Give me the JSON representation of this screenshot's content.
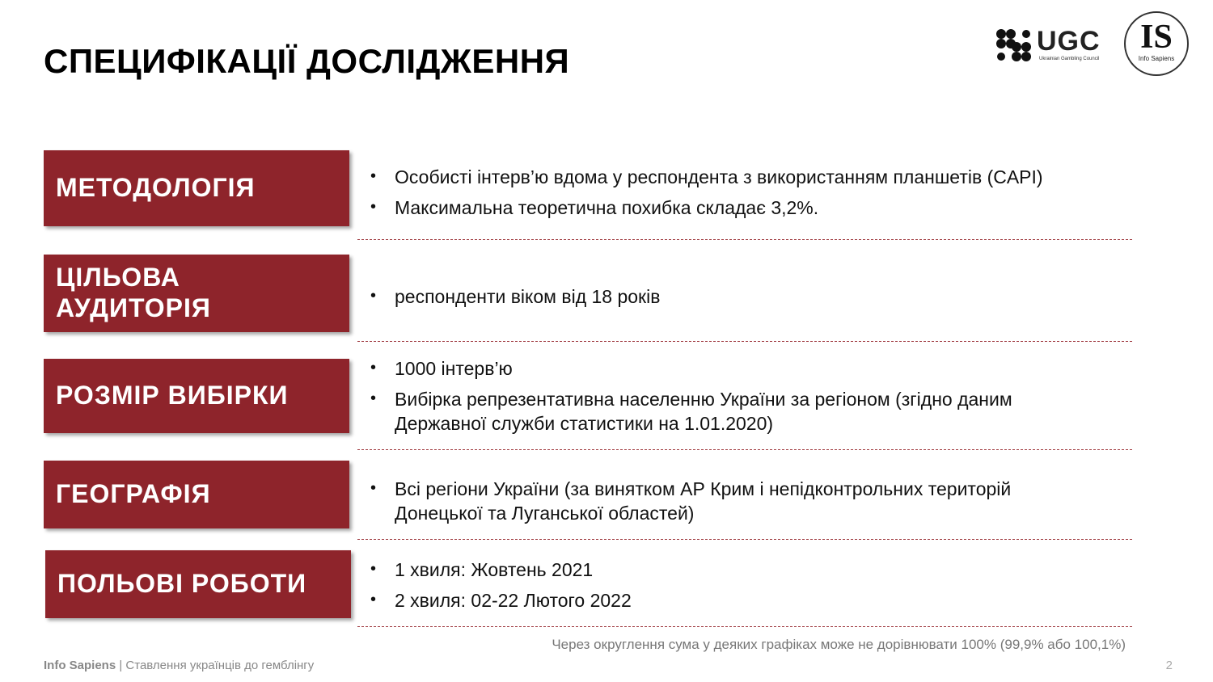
{
  "slide": {
    "title": "СПЕЦИФІКАЦІЇ ДОСЛІДЖЕННЯ",
    "page_number": "2"
  },
  "logos": {
    "ugc": {
      "text": "UGC",
      "subtitle": "Ukrainian Gambling Council"
    },
    "info_sapiens": {
      "mark": "IS",
      "subtitle": "Info Sapiens"
    }
  },
  "sections": [
    {
      "label": "МЕТОДОЛОГІЯ",
      "bullets": [
        "Особисті інтерв’ю вдома у респондента з використанням планшетів (CAPI)",
        "Максимальна теоретична похибка складає 3,2%."
      ]
    },
    {
      "label": "ЦІЛЬОВА АУДИТОРІЯ",
      "bullets": [
        "респонденти віком від 18 років"
      ]
    },
    {
      "label": "РОЗМІР ВИБІРКИ",
      "bullets": [
        "1000 інтерв’ю",
        "Вибірка репрезентативна населенню України за регіоном (згідно даним Державної служби статистики на 1.01.2020)"
      ]
    },
    {
      "label": "ГЕОГРАФІЯ",
      "bullets": [
        "Всі регіони України (за винятком АР Крим і непідконтрольних територій Донецької та Луганської областей)"
      ]
    },
    {
      "label": "ПОЛЬОВІ РОБОТИ",
      "bullets": [
        "1 хвиля: Жовтень 2021",
        "2 хвиля: 02-22 Лютого 2022"
      ]
    }
  ],
  "note": "Через округлення сума у деяких графіках може не дорівнювати 100% (99,9% або 100,1%)",
  "footer": {
    "brand": "Info Sapiens",
    "separator": " | ",
    "report_title": "Ставлення українців до гемблінгу"
  },
  "colors": {
    "accent": "#8e242b",
    "divider": "#a03a40"
  }
}
